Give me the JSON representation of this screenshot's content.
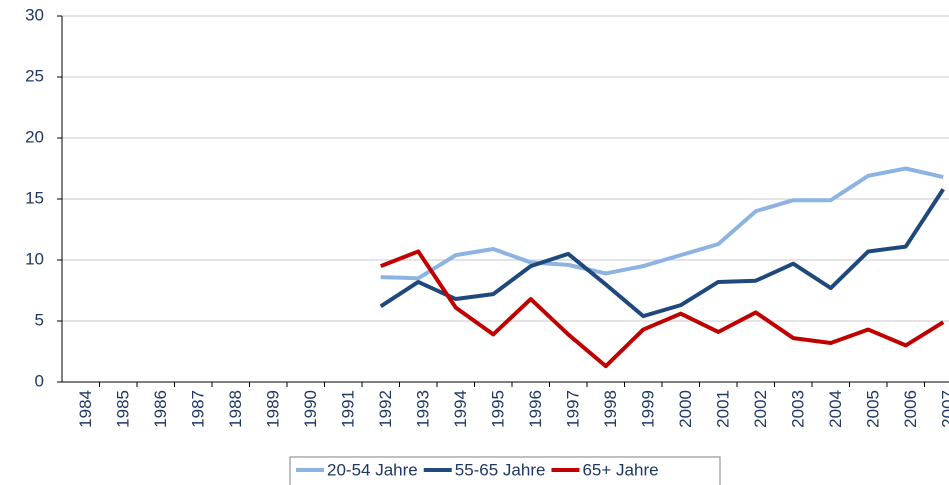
{
  "chart_data": {
    "type": "line",
    "categories": [
      "1984",
      "1985",
      "1986",
      "1987",
      "1988",
      "1989",
      "1990",
      "1991",
      "1992",
      "1993",
      "1994",
      "1995",
      "1996",
      "1997",
      "1998",
      "1999",
      "2000",
      "2001",
      "2002",
      "2003",
      "2004",
      "2005",
      "2006",
      "2007"
    ],
    "series": [
      {
        "name": "20-54 Jahre",
        "color": "#8db3e2",
        "values": [
          null,
          null,
          null,
          null,
          null,
          null,
          null,
          null,
          8.6,
          8.5,
          10.4,
          10.9,
          9.8,
          9.6,
          8.9,
          9.5,
          10.4,
          11.3,
          14.0,
          14.9,
          14.9,
          16.9,
          17.5,
          16.8
        ]
      },
      {
        "name": "55-65 Jahre",
        "color": "#1f497d",
        "values": [
          null,
          null,
          null,
          null,
          null,
          null,
          null,
          null,
          6.2,
          8.2,
          6.8,
          7.2,
          9.5,
          10.5,
          8.0,
          5.4,
          6.3,
          8.2,
          8.3,
          9.7,
          7.7,
          10.7,
          11.1,
          15.8
        ]
      },
      {
        "name": "65+ Jahre",
        "color": "#c00000",
        "values": [
          null,
          null,
          null,
          null,
          null,
          null,
          null,
          null,
          9.5,
          10.7,
          6.1,
          3.9,
          6.8,
          3.9,
          1.3,
          4.3,
          5.6,
          4.1,
          5.7,
          3.6,
          3.2,
          4.3,
          3.0,
          4.9
        ]
      }
    ],
    "ylim": [
      0,
      30
    ],
    "yticks": [
      0,
      5,
      10,
      15,
      20,
      25,
      30
    ],
    "grid": true,
    "legend": "bottom"
  }
}
